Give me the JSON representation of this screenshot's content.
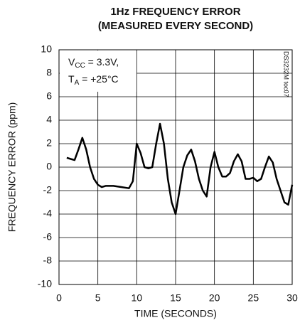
{
  "chart_data": {
    "type": "line",
    "title": [
      "1Hz FREQUENCY ERROR",
      "(MEASURED EVERY SECOND)"
    ],
    "x_label": "TIME (SECONDS)",
    "y_label": "FREQUENCY ERROR (ppm)",
    "annotation": [
      {
        "main": "V",
        "sub": "CC",
        "rest": " = 3.3V,"
      },
      {
        "main": "T",
        "sub": "A",
        "rest": " = +25°C"
      }
    ],
    "watermark": "DS3232M toc07",
    "xlim": [
      0,
      30
    ],
    "xticks": [
      0,
      5,
      10,
      15,
      20,
      25,
      30
    ],
    "ylim": [
      -10,
      10
    ],
    "yticks": [
      -10,
      -8,
      -6,
      -4,
      -2,
      0,
      2,
      4,
      6,
      8,
      10
    ],
    "grid": true,
    "series": [
      {
        "color": "#000000",
        "x": [
          1,
          1.5,
          2,
          2.5,
          3,
          3.5,
          4,
          4.5,
          5,
          5.5,
          6,
          7,
          8,
          9,
          9.5,
          10,
          10.5,
          11,
          11.5,
          12,
          12.5,
          13,
          13.5,
          14,
          14.5,
          15,
          15.5,
          16,
          16.5,
          17,
          17.5,
          18,
          18.5,
          19,
          19.5,
          20,
          20.5,
          21,
          21.5,
          22,
          22.5,
          23,
          23.5,
          24,
          24.5,
          25,
          25.5,
          26,
          26.5,
          27,
          27.5,
          28,
          28.5,
          29,
          29.5,
          30
        ],
        "values": [
          0.8,
          0.7,
          0.6,
          1.5,
          2.5,
          1.5,
          0,
          -1,
          -1.5,
          -1.7,
          -1.6,
          -1.6,
          -1.7,
          -1.8,
          -1.2,
          2.0,
          1.2,
          0,
          -0.1,
          0,
          2,
          3.7,
          2,
          -1,
          -3,
          -4,
          -2,
          0,
          1,
          1.5,
          0.5,
          -1,
          -2,
          -2.5,
          0,
          1.3,
          0,
          -0.8,
          -0.8,
          -0.5,
          0.5,
          1.1,
          0.5,
          -1,
          -1,
          -0.9,
          -1.2,
          -1,
          0,
          0.9,
          0.4,
          -1,
          -2,
          -3,
          -3.2,
          -1.5
        ]
      }
    ]
  }
}
